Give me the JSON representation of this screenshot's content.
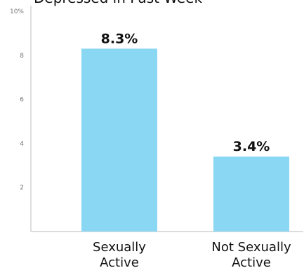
{
  "chart_data": {
    "type": "bar",
    "title": "Depressed in Past Week",
    "categories": [
      [
        "Sexually",
        "Active"
      ],
      [
        "Not Sexually",
        "Active"
      ]
    ],
    "values": [
      8.3,
      3.4
    ],
    "value_labels": [
      "8.3%",
      "3.4%"
    ],
    "ylim": [
      0,
      10
    ],
    "yticks": [
      {
        "value": 2,
        "label": "2"
      },
      {
        "value": 4,
        "label": "4"
      },
      {
        "value": 6,
        "label": "6"
      },
      {
        "value": 8,
        "label": "8"
      },
      {
        "value": 10,
        "label": "10%"
      }
    ],
    "xlabel": "",
    "ylabel": "",
    "grid": false,
    "bar_color": "#8ad7f4"
  }
}
